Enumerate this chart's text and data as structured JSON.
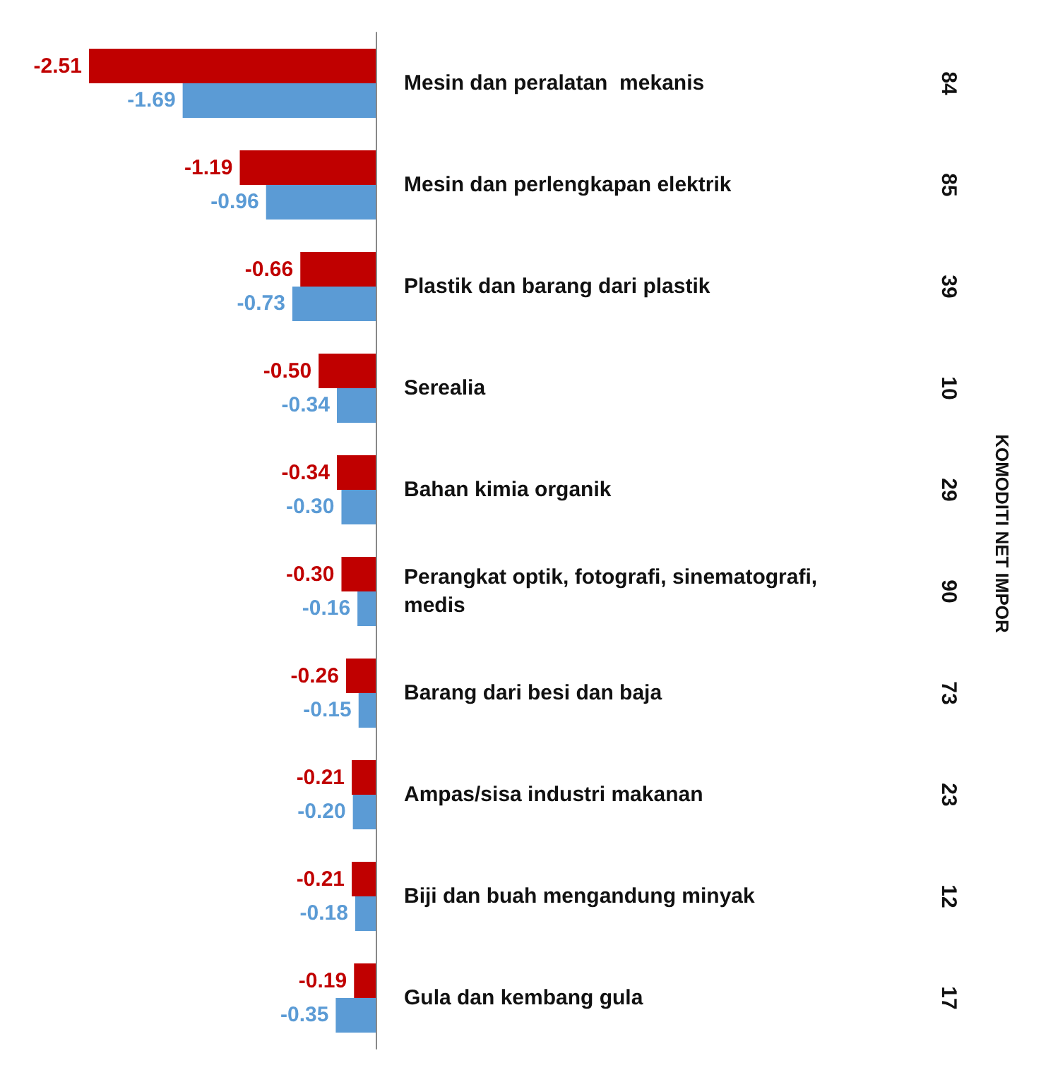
{
  "chart_data": {
    "type": "bar",
    "orientation": "horizontal",
    "annotations": [
      "KOMODITI NET IMPOR"
    ],
    "categories": [
      "Mesin dan peralatan  mekanis",
      "Mesin dan perlengkapan elektrik",
      "Plastik dan barang dari plastik",
      "Serealia",
      "Bahan kimia organik",
      "Perangkat optik, fotografi, sinematografi, medis",
      "Barang dari besi dan baja",
      "Ampas/sisa industri makanan",
      "Biji dan buah mengandung minyak",
      "Gula dan kembang gula"
    ],
    "y2_categories": [
      "84",
      "85",
      "39",
      "10",
      "29",
      "90",
      "73",
      "23",
      "12",
      "17"
    ],
    "series": [
      {
        "color": "#c00000",
        "values": [
          -2.51,
          -1.19,
          -0.66,
          -0.5,
          -0.34,
          -0.3,
          -0.26,
          -0.21,
          -0.21,
          -0.19
        ],
        "value_labels": [
          "-2.51",
          "-1.19",
          "-0.66",
          "-0.50",
          "-0.34",
          "-0.30",
          "-0.26",
          "-0.21",
          "-0.21",
          "-0.19"
        ]
      },
      {
        "color": "#5b9bd5",
        "values": [
          -1.69,
          -0.96,
          -0.73,
          -0.34,
          -0.3,
          -0.16,
          -0.15,
          -0.2,
          -0.18,
          -0.35
        ],
        "value_labels": [
          "-1.69",
          "-0.96",
          "-0.73",
          "-0.34",
          "-0.30",
          "-0.16",
          "-0.15",
          "-0.20",
          "-0.18",
          "-0.35"
        ]
      }
    ]
  }
}
